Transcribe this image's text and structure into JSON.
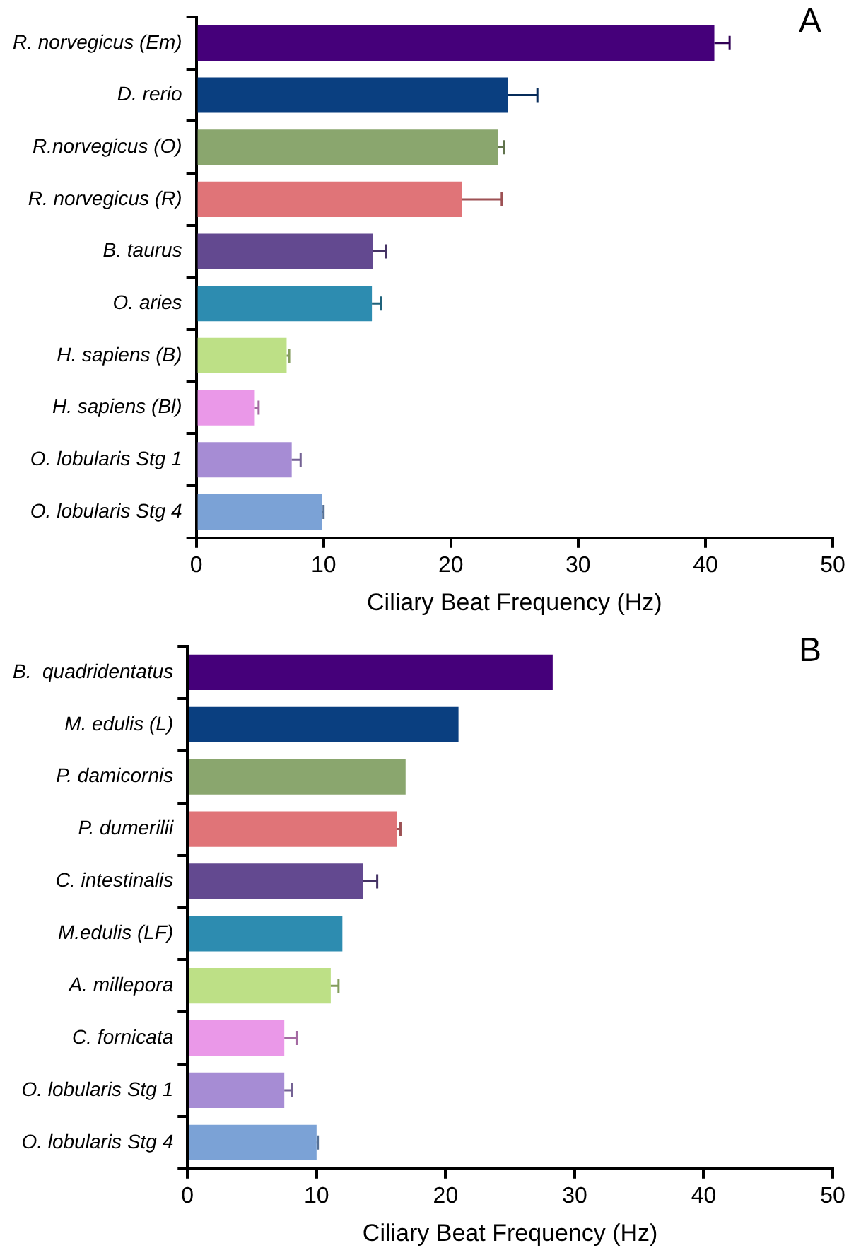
{
  "chart_data": [
    {
      "type": "bar",
      "orientation": "horizontal",
      "annotations": [
        "A"
      ],
      "xlabel": "Ciliary Beat Frequency (Hz)",
      "categories": [
        "R. norvegicus (Em)",
        "D. rerio",
        "R.norvegicus (O)",
        "R. norvegicus (R)",
        "B. taurus",
        "O. aries",
        "H. sapiens (B)",
        "H. sapiens (Bl)",
        "O. lobularis Stg 1",
        "O. lobularis Stg 4"
      ],
      "values": [
        40.7,
        24.5,
        23.7,
        20.9,
        13.9,
        13.8,
        7.1,
        4.6,
        7.5,
        9.9
      ],
      "errors": [
        [
          40.7,
          41.9
        ],
        [
          24.5,
          26.8
        ],
        [
          23.7,
          24.2
        ],
        [
          20.9,
          24.0
        ],
        [
          13.9,
          14.9
        ],
        [
          13.8,
          14.5
        ],
        [
          7.1,
          7.3
        ],
        [
          4.6,
          4.9
        ],
        [
          7.5,
          8.2
        ],
        [
          9.9,
          10.0
        ]
      ],
      "colors": [
        "#45007a",
        "#0a3f80",
        "#8aa66e",
        "#e07478",
        "#634990",
        "#2d8cb0",
        "#bde086",
        "#ea98e8",
        "#a68cd4",
        "#7ba2d6"
      ],
      "xlim": [
        0,
        50
      ],
      "xticks": [
        0,
        10,
        20,
        30,
        40,
        50
      ],
      "grid": false,
      "legend": false
    },
    {
      "type": "bar",
      "orientation": "horizontal",
      "annotations": [
        "B"
      ],
      "xlabel": "Ciliary Beat Frequency (Hz)",
      "categories": [
        "B.  quadridentatus",
        "M. edulis (L)",
        "P. damicornis",
        "P. dumerilii",
        "C. intestinalis",
        "M.edulis (LF)",
        "A. millepora",
        "C. fornicata",
        "O. lobularis Stg 1",
        "O. lobularis Stg 4"
      ],
      "values": [
        28.3,
        21.0,
        16.9,
        16.2,
        13.6,
        12.0,
        11.1,
        7.5,
        7.5,
        10.0
      ],
      "errors": [
        null,
        null,
        null,
        [
          16.2,
          16.5
        ],
        [
          13.6,
          14.7
        ],
        null,
        [
          11.1,
          11.7
        ],
        [
          7.5,
          8.5
        ],
        [
          7.5,
          8.1
        ],
        [
          10.0,
          10.1
        ]
      ],
      "colors": [
        "#45007a",
        "#0a3f80",
        "#8aa66e",
        "#e07478",
        "#634990",
        "#2d8cb0",
        "#bde086",
        "#ea98e8",
        "#a68cd4",
        "#7ba2d6"
      ],
      "xlim": [
        0,
        50
      ],
      "xticks": [
        0,
        10,
        20,
        30,
        40,
        50
      ],
      "grid": false,
      "legend": false
    }
  ]
}
